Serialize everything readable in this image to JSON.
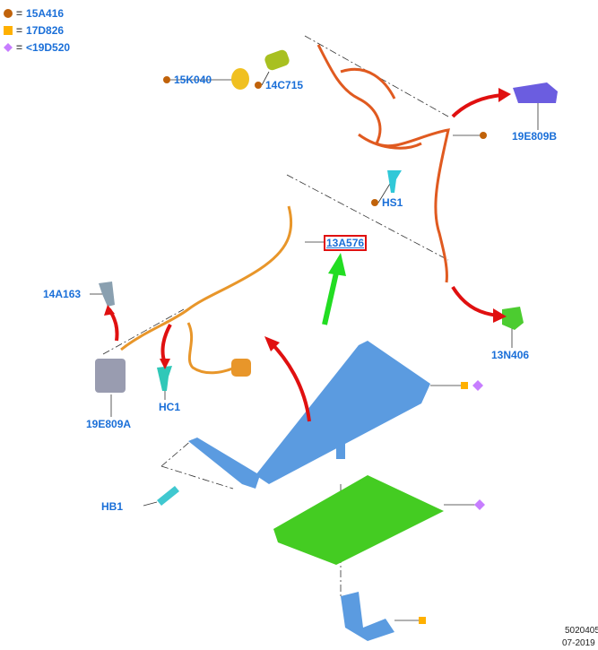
{
  "legend": [
    {
      "symbol": "circle",
      "color": "#c0620a",
      "equals": "=",
      "code": "15A416"
    },
    {
      "symbol": "square",
      "color": "#ffb000",
      "equals": "=",
      "code": "17D826"
    },
    {
      "symbol": "diamond",
      "color": "#c77dff",
      "equals": "=",
      "code": "<19D520"
    }
  ],
  "parts": {
    "p15K040": "15K040",
    "p14C715": "14C715",
    "p19E809B": "19E809B",
    "pHS1": "HS1",
    "p13A576": "13A576",
    "p14A163": "14A163",
    "p19E809A": "19E809A",
    "pHC1": "HC1",
    "p13N406": "13N406",
    "pHB1": "HB1"
  },
  "footer": {
    "number": "5020405",
    "date": "07-2019"
  },
  "colors": {
    "label": "#1a6fd8",
    "arrow_red": "#e01010",
    "arrow_green": "#22dd22",
    "harness": "#e05a20",
    "towbar": "#5b9be0",
    "shield": "#44cc22",
    "highlight_box": "#e01010"
  }
}
